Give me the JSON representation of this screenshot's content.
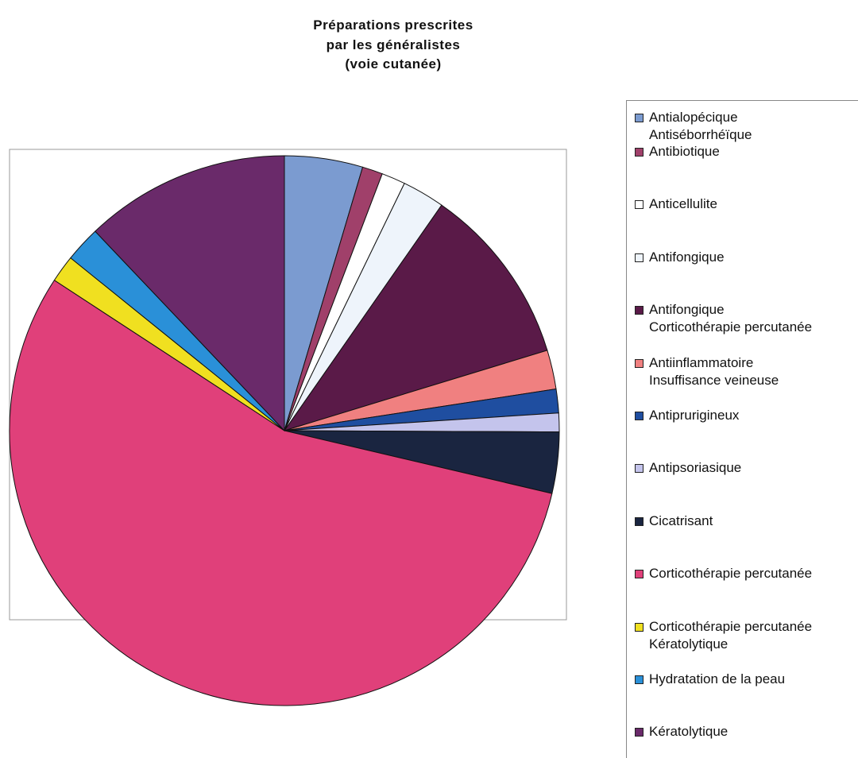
{
  "chart_data": {
    "type": "pie",
    "title": "Préparations prescrites\npar les généralistes\n(voie cutanée)",
    "categories": [
      "Antialopécique\nAntiséborrhéïque",
      "Antibiotique",
      "Anticellulite",
      "Antifongique",
      "Antifongique\nCorticothérapie percutanée",
      "Antiinflammatoire\nInsuffisance veineuse",
      "Antiprurigineux",
      "Antipsoriasique",
      "Cicatrisant",
      "Corticothérapie percutanée",
      "Corticothérapie percutanée\nKératolytique",
      "Hydratation de la peau",
      "Kératolytique"
    ],
    "values": [
      4.6,
      1.2,
      1.4,
      2.5,
      10.6,
      2.3,
      1.4,
      1.1,
      3.6,
      55.6,
      1.6,
      2.1,
      12.1
    ],
    "colors": [
      "#7b9bd0",
      "#a0406a",
      "#ffffff",
      "#eef4fb",
      "#5a1a48",
      "#f08080",
      "#1f4ea0",
      "#c4c4ec",
      "#1a2540",
      "#e0407a",
      "#f0e020",
      "#2a90d8",
      "#6a2a6a"
    ],
    "legend": "right"
  }
}
